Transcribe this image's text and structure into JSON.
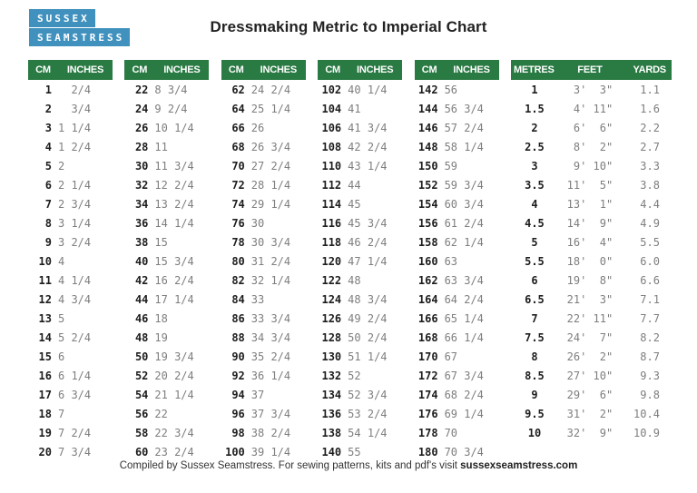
{
  "logo": {
    "line1": "SUSSEX",
    "line2": "SEAMSTRESS",
    "bg_color": "#4191bf",
    "text_color": "#ffffff"
  },
  "title": "Dressmaking Metric to Imperial Chart",
  "colors": {
    "header_green": "#2a7a43",
    "header_text": "#ffffff",
    "cm_text": "#1d1d1d",
    "inches_text": "#7e7e7e"
  },
  "cm_tables": [
    {
      "headers": [
        "CM",
        "INCHES"
      ],
      "rows": [
        [
          "1",
          "  2/4"
        ],
        [
          "2",
          "  3/4"
        ],
        [
          "3",
          "1 1/4"
        ],
        [
          "4",
          "1 2/4"
        ],
        [
          "5",
          "2"
        ],
        [
          "6",
          "2 1/4"
        ],
        [
          "7",
          "2 3/4"
        ],
        [
          "8",
          "3 1/4"
        ],
        [
          "9",
          "3 2/4"
        ],
        [
          "10",
          "4"
        ],
        [
          "11",
          "4 1/4"
        ],
        [
          "12",
          "4 3/4"
        ],
        [
          "13",
          "5"
        ],
        [
          "14",
          "5 2/4"
        ],
        [
          "15",
          "6"
        ],
        [
          "16",
          "6 1/4"
        ],
        [
          "17",
          "6 3/4"
        ],
        [
          "18",
          "7"
        ],
        [
          "19",
          "7 2/4"
        ],
        [
          "20",
          "7 3/4"
        ]
      ]
    },
    {
      "headers": [
        "CM",
        "INCHES"
      ],
      "rows": [
        [
          "22",
          "8 3/4"
        ],
        [
          "24",
          "9 2/4"
        ],
        [
          "26",
          "10 1/4"
        ],
        [
          "28",
          "11"
        ],
        [
          "30",
          "11 3/4"
        ],
        [
          "32",
          "12 2/4"
        ],
        [
          "34",
          "13 2/4"
        ],
        [
          "36",
          "14 1/4"
        ],
        [
          "38",
          "15"
        ],
        [
          "40",
          "15 3/4"
        ],
        [
          "42",
          "16 2/4"
        ],
        [
          "44",
          "17 1/4"
        ],
        [
          "46",
          "18"
        ],
        [
          "48",
          "19"
        ],
        [
          "50",
          "19 3/4"
        ],
        [
          "52",
          "20 2/4"
        ],
        [
          "54",
          "21 1/4"
        ],
        [
          "56",
          "22"
        ],
        [
          "58",
          "22 3/4"
        ],
        [
          "60",
          "23 2/4"
        ]
      ]
    },
    {
      "headers": [
        "CM",
        "INCHES"
      ],
      "rows": [
        [
          "62",
          "24 2/4"
        ],
        [
          "64",
          "25 1/4"
        ],
        [
          "66",
          "26"
        ],
        [
          "68",
          "26 3/4"
        ],
        [
          "70",
          "27 2/4"
        ],
        [
          "72",
          "28 1/4"
        ],
        [
          "74",
          "29 1/4"
        ],
        [
          "76",
          "30"
        ],
        [
          "78",
          "30 3/4"
        ],
        [
          "80",
          "31 2/4"
        ],
        [
          "82",
          "32 1/4"
        ],
        [
          "84",
          "33"
        ],
        [
          "86",
          "33 3/4"
        ],
        [
          "88",
          "34 3/4"
        ],
        [
          "90",
          "35 2/4"
        ],
        [
          "92",
          "36 1/4"
        ],
        [
          "94",
          "37"
        ],
        [
          "96",
          "37 3/4"
        ],
        [
          "98",
          "38 2/4"
        ],
        [
          "100",
          "39 1/4"
        ]
      ]
    },
    {
      "headers": [
        "CM",
        "INCHES"
      ],
      "rows": [
        [
          "102",
          "40 1/4"
        ],
        [
          "104",
          "41"
        ],
        [
          "106",
          "41 3/4"
        ],
        [
          "108",
          "42 2/4"
        ],
        [
          "110",
          "43 1/4"
        ],
        [
          "112",
          "44"
        ],
        [
          "114",
          "45"
        ],
        [
          "116",
          "45 3/4"
        ],
        [
          "118",
          "46 2/4"
        ],
        [
          "120",
          "47 1/4"
        ],
        [
          "122",
          "48"
        ],
        [
          "124",
          "48 3/4"
        ],
        [
          "126",
          "49 2/4"
        ],
        [
          "128",
          "50 2/4"
        ],
        [
          "130",
          "51 1/4"
        ],
        [
          "132",
          "52"
        ],
        [
          "134",
          "52 3/4"
        ],
        [
          "136",
          "53 2/4"
        ],
        [
          "138",
          "54 1/4"
        ],
        [
          "140",
          "55"
        ]
      ]
    },
    {
      "headers": [
        "CM",
        "INCHES"
      ],
      "rows": [
        [
          "142",
          "56"
        ],
        [
          "144",
          "56 3/4"
        ],
        [
          "146",
          "57 2/4"
        ],
        [
          "148",
          "58 1/4"
        ],
        [
          "150",
          "59"
        ],
        [
          "152",
          "59 3/4"
        ],
        [
          "154",
          "60 3/4"
        ],
        [
          "156",
          "61 2/4"
        ],
        [
          "158",
          "62 1/4"
        ],
        [
          "160",
          "63"
        ],
        [
          "162",
          "63 3/4"
        ],
        [
          "164",
          "64 2/4"
        ],
        [
          "166",
          "65 1/4"
        ],
        [
          "168",
          "66 1/4"
        ],
        [
          "170",
          "67"
        ],
        [
          "172",
          "67 3/4"
        ],
        [
          "174",
          "68 2/4"
        ],
        [
          "176",
          "69 1/4"
        ],
        [
          "178",
          "70"
        ],
        [
          "180",
          "70 3/4"
        ]
      ]
    }
  ],
  "metres_table": {
    "headers": [
      "METRES",
      "FEET",
      "YARDS"
    ],
    "rows": [
      [
        "1",
        " 3'  3\"",
        "1.1"
      ],
      [
        "1.5",
        " 4' 11\"",
        "1.6"
      ],
      [
        "2",
        " 6'  6\"",
        "2.2"
      ],
      [
        "2.5",
        " 8'  2\"",
        "2.7"
      ],
      [
        "3",
        " 9' 10\"",
        "3.3"
      ],
      [
        "3.5",
        "11'  5\"",
        "3.8"
      ],
      [
        "4",
        "13'  1\"",
        "4.4"
      ],
      [
        "4.5",
        "14'  9\"",
        "4.9"
      ],
      [
        "5",
        "16'  4\"",
        "5.5"
      ],
      [
        "5.5",
        "18'  0\"",
        "6.0"
      ],
      [
        "6",
        "19'  8\"",
        "6.6"
      ],
      [
        "6.5",
        "21'  3\"",
        "7.1"
      ],
      [
        "7",
        "22' 11\"",
        "7.7"
      ],
      [
        "7.5",
        "24'  7\"",
        "8.2"
      ],
      [
        "8",
        "26'  2\"",
        "8.7"
      ],
      [
        "8.5",
        "27' 10\"",
        "9.3"
      ],
      [
        "9",
        "29'  6\"",
        "9.8"
      ],
      [
        "9.5",
        "31'  2\"",
        "10.4"
      ],
      [
        "10",
        "32'  9\"",
        "10.9"
      ]
    ]
  },
  "footer": {
    "prefix": "Compiled by Sussex Seamstress.  For sewing patterns, kits and pdf's visit",
    "link": "sussexseamstress.com"
  }
}
